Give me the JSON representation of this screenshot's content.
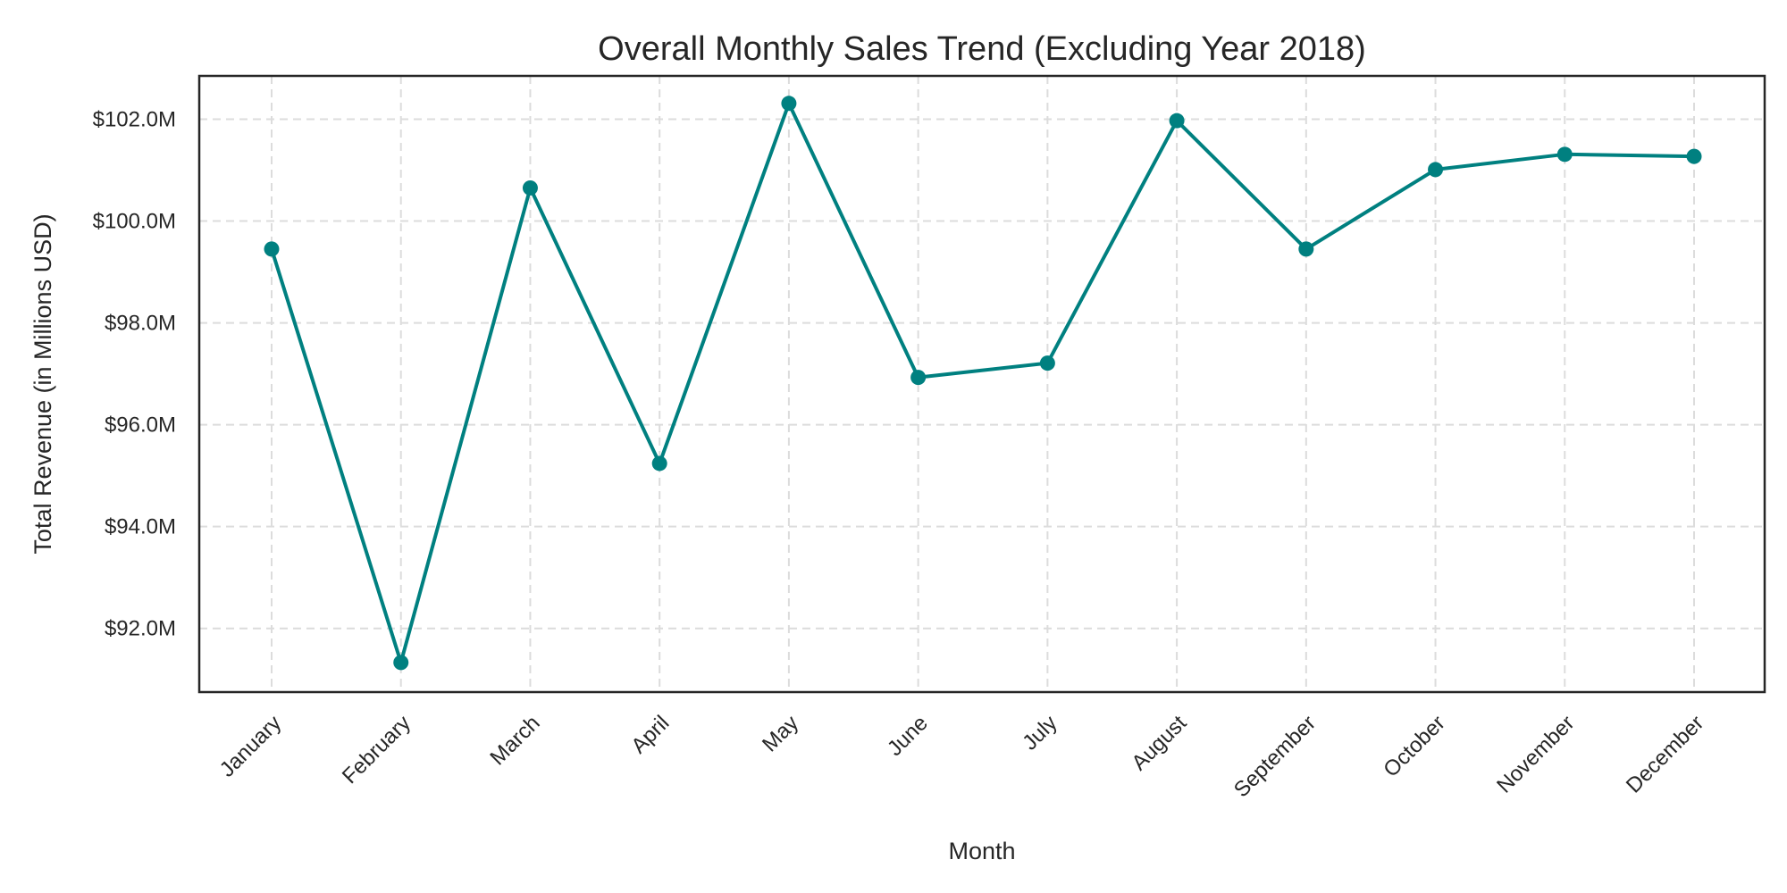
{
  "chart_data": {
    "type": "line",
    "title": "Overall Monthly Sales Trend (Excluding Year 2018)",
    "xlabel": "Month",
    "ylabel": "Total Revenue (in Millions USD)",
    "categories": [
      "January",
      "February",
      "March",
      "April",
      "May",
      "June",
      "July",
      "August",
      "September",
      "October",
      "November",
      "December"
    ],
    "series": [
      {
        "color": "#008080",
        "marker": "circle",
        "values": [
          99.45,
          91.33,
          100.65,
          95.24,
          102.31,
          96.93,
          97.21,
          101.97,
          99.45,
          101.01,
          101.31,
          101.27
        ]
      }
    ],
    "ylim": [
      90.75,
      102.85
    ],
    "yticks": [
      92,
      94,
      96,
      98,
      100,
      102
    ],
    "ytick_labels": [
      "$92.0M",
      "$94.0M",
      "$96.0M",
      "$98.0M",
      "$100.0M",
      "$102.0M"
    ],
    "grid": true,
    "grid_style": "dashed",
    "xtick_rotation_deg": 45
  }
}
